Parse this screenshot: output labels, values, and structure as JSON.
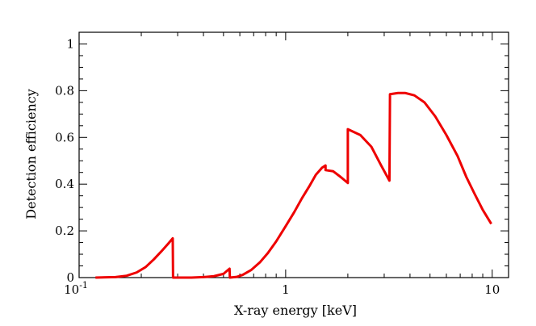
{
  "chart_data": {
    "type": "line",
    "xlabel": "X-ray energy [keV]",
    "ylabel": "Detection efficiency",
    "xscale": "log",
    "xlim": [
      0.1,
      12
    ],
    "ylim": [
      0,
      1.05
    ],
    "grid": false,
    "x_ticks": [
      {
        "value": 0.1,
        "base": "10",
        "exp": "-1"
      },
      {
        "value": 1,
        "label": "1"
      },
      {
        "value": 10,
        "label": "10"
      }
    ],
    "y_ticks": [
      {
        "value": 0,
        "label": "0"
      },
      {
        "value": 0.2,
        "label": "0.2"
      },
      {
        "value": 0.4,
        "label": "0.4"
      },
      {
        "value": 0.6,
        "label": "0.6"
      },
      {
        "value": 0.8,
        "label": "0.8"
      },
      {
        "value": 1,
        "label": "1"
      }
    ],
    "series": [
      {
        "color": "#ee0000",
        "points": [
          [
            0.12,
            0.0
          ],
          [
            0.15,
            0.002
          ],
          [
            0.17,
            0.008
          ],
          [
            0.19,
            0.022
          ],
          [
            0.21,
            0.045
          ],
          [
            0.23,
            0.078
          ],
          [
            0.25,
            0.112
          ],
          [
            0.27,
            0.145
          ],
          [
            0.284,
            0.168
          ],
          [
            0.285,
            0.0
          ],
          [
            0.3,
            0.0
          ],
          [
            0.35,
            0.0
          ],
          [
            0.4,
            0.002
          ],
          [
            0.45,
            0.006
          ],
          [
            0.5,
            0.016
          ],
          [
            0.535,
            0.038
          ],
          [
            0.537,
            0.0
          ],
          [
            0.58,
            0.003
          ],
          [
            0.62,
            0.012
          ],
          [
            0.68,
            0.032
          ],
          [
            0.75,
            0.065
          ],
          [
            0.82,
            0.105
          ],
          [
            0.9,
            0.155
          ],
          [
            1.0,
            0.22
          ],
          [
            1.1,
            0.28
          ],
          [
            1.2,
            0.34
          ],
          [
            1.3,
            0.39
          ],
          [
            1.4,
            0.44
          ],
          [
            1.5,
            0.47
          ],
          [
            1.56,
            0.48
          ],
          [
            1.56,
            0.46
          ],
          [
            1.7,
            0.455
          ],
          [
            1.85,
            0.43
          ],
          [
            2.0,
            0.405
          ],
          [
            2.0,
            0.635
          ],
          [
            2.3,
            0.61
          ],
          [
            2.6,
            0.56
          ],
          [
            2.9,
            0.48
          ],
          [
            3.18,
            0.415
          ],
          [
            3.2,
            0.785
          ],
          [
            3.5,
            0.79
          ],
          [
            3.8,
            0.79
          ],
          [
            4.2,
            0.78
          ],
          [
            4.7,
            0.75
          ],
          [
            5.3,
            0.69
          ],
          [
            6.0,
            0.61
          ],
          [
            6.8,
            0.52
          ],
          [
            7.5,
            0.43
          ],
          [
            8.2,
            0.36
          ],
          [
            9.0,
            0.29
          ],
          [
            9.9,
            0.23
          ]
        ]
      }
    ]
  }
}
